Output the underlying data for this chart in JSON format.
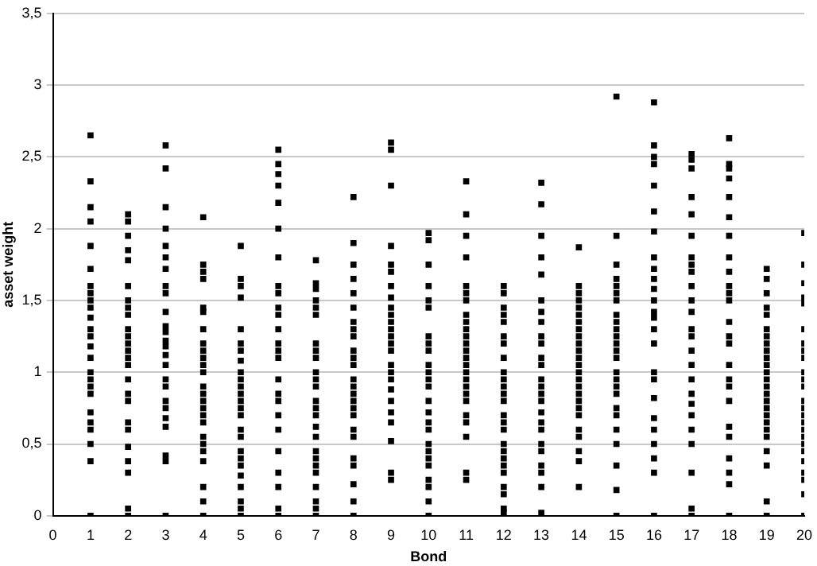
{
  "chart_data": {
    "type": "scatter",
    "xlabel": "Bond",
    "ylabel": "asset weight",
    "xlim": [
      0,
      20
    ],
    "xticks": [
      0,
      1,
      2,
      3,
      4,
      5,
      6,
      7,
      8,
      9,
      10,
      11,
      12,
      13,
      14,
      15,
      16,
      17,
      18,
      19,
      20
    ],
    "ylim": [
      0,
      3.5
    ],
    "yticks": [
      0,
      {
        "value": 0.5,
        "label": "0,5"
      },
      1,
      {
        "value": 1.5,
        "label": "1,5"
      },
      2,
      {
        "value": 2.5,
        "label": "2,5"
      },
      3,
      {
        "value": 3.5,
        "label": "3,5"
      }
    ],
    "grid": "y",
    "legend": false,
    "color": "#000000",
    "marker": "square",
    "x": [
      1,
      1,
      1,
      1,
      1,
      1,
      1,
      1,
      1,
      1,
      1,
      1,
      1,
      1,
      1,
      1,
      1,
      1,
      1,
      1,
      1,
      1,
      1,
      1,
      1,
      2,
      2,
      2,
      2,
      2,
      2,
      2,
      2,
      2,
      2,
      2,
      2,
      2,
      2,
      2,
      2,
      2,
      2,
      2,
      2,
      2,
      2,
      2,
      2,
      2,
      3,
      3,
      3,
      3,
      3,
      3,
      3,
      3,
      3,
      3,
      3,
      3,
      3,
      3,
      3,
      3,
      3,
      3,
      3,
      3,
      3,
      3,
      3,
      3,
      3,
      4,
      4,
      4,
      4,
      4,
      4,
      4,
      4,
      4,
      4,
      4,
      4,
      4,
      4,
      4,
      4,
      4,
      4,
      4,
      4,
      4,
      4,
      4,
      4,
      4,
      5,
      5,
      5,
      5,
      5,
      5,
      5,
      5,
      5,
      5,
      5,
      5,
      5,
      5,
      5,
      5,
      5,
      5,
      5,
      5,
      5,
      5,
      5,
      5,
      5,
      6,
      6,
      6,
      6,
      6,
      6,
      6,
      6,
      6,
      6,
      6,
      6,
      6,
      6,
      6,
      6,
      6,
      6,
      6,
      6,
      6,
      6,
      6,
      6,
      6,
      7,
      7,
      7,
      7,
      7,
      7,
      7,
      7,
      7,
      7,
      7,
      7,
      7,
      7,
      7,
      7,
      7,
      7,
      7,
      7,
      7,
      7,
      7,
      7,
      7,
      8,
      8,
      8,
      8,
      8,
      8,
      8,
      8,
      8,
      8,
      8,
      8,
      8,
      8,
      8,
      8,
      8,
      8,
      8,
      8,
      8,
      8,
      8,
      8,
      8,
      9,
      9,
      9,
      9,
      9,
      9,
      9,
      9,
      9,
      9,
      9,
      9,
      9,
      9,
      9,
      9,
      9,
      9,
      9,
      9,
      9,
      9,
      9,
      9,
      9,
      10,
      10,
      10,
      10,
      10,
      10,
      10,
      10,
      10,
      10,
      10,
      10,
      10,
      10,
      10,
      10,
      10,
      10,
      10,
      10,
      10,
      10,
      10,
      10,
      10,
      11,
      11,
      11,
      11,
      11,
      11,
      11,
      11,
      11,
      11,
      11,
      11,
      11,
      11,
      11,
      11,
      11,
      11,
      11,
      11,
      11,
      11,
      11,
      11,
      11,
      12,
      12,
      12,
      12,
      12,
      12,
      12,
      12,
      12,
      12,
      12,
      12,
      12,
      12,
      12,
      12,
      12,
      12,
      12,
      12,
      12,
      12,
      12,
      12,
      12,
      13,
      13,
      13,
      13,
      13,
      13,
      13,
      13,
      13,
      13,
      13,
      13,
      13,
      13,
      13,
      13,
      13,
      13,
      13,
      13,
      13,
      13,
      13,
      13,
      13,
      14,
      14,
      14,
      14,
      14,
      14,
      14,
      14,
      14,
      14,
      14,
      14,
      14,
      14,
      14,
      14,
      14,
      14,
      14,
      14,
      14,
      14,
      14,
      14,
      14,
      15,
      15,
      15,
      15,
      15,
      15,
      15,
      15,
      15,
      15,
      15,
      15,
      15,
      15,
      15,
      15,
      15,
      15,
      15,
      15,
      15,
      15,
      15,
      15,
      15,
      16,
      16,
      16,
      16,
      16,
      16,
      16,
      16,
      16,
      16,
      16,
      16,
      16,
      16,
      16,
      16,
      16,
      16,
      16,
      16,
      16,
      16,
      16,
      16,
      16,
      17,
      17,
      17,
      17,
      17,
      17,
      17,
      17,
      17,
      17,
      17,
      17,
      17,
      17,
      17,
      17,
      17,
      17,
      17,
      17,
      17,
      17,
      17,
      17,
      17,
      18,
      18,
      18,
      18,
      18,
      18,
      18,
      18,
      18,
      18,
      18,
      18,
      18,
      18,
      18,
      18,
      18,
      18,
      18,
      18,
      18,
      18,
      18,
      18,
      18,
      19,
      19,
      19,
      19,
      19,
      19,
      19,
      19,
      19,
      19,
      19,
      19,
      19,
      19,
      19,
      19,
      19,
      19,
      19,
      19,
      19,
      19,
      19,
      19,
      19,
      20,
      20,
      20,
      20,
      20,
      20,
      20,
      20,
      20,
      20,
      20,
      20,
      20,
      20,
      20,
      20,
      20,
      20,
      20,
      20,
      20,
      20,
      20,
      20,
      20
    ],
    "values": [
      2.65,
      2.33,
      2.15,
      2.05,
      1.88,
      1.72,
      1.6,
      1.55,
      1.5,
      1.45,
      1.38,
      1.3,
      1.25,
      1.18,
      1.1,
      1.0,
      0.95,
      0.9,
      0.85,
      0.72,
      0.65,
      0.6,
      0.5,
      0.38,
      0,
      2.1,
      2.05,
      1.95,
      1.85,
      1.78,
      1.6,
      1.5,
      1.45,
      1.4,
      1.3,
      1.25,
      1.2,
      1.15,
      1.1,
      1.05,
      0.95,
      0.85,
      0.8,
      0.65,
      0.6,
      0.48,
      0.38,
      0.3,
      0.05,
      0,
      2.58,
      2.42,
      2.15,
      2.0,
      1.88,
      1.8,
      1.72,
      1.6,
      1.55,
      1.42,
      1.32,
      1.28,
      1.22,
      1.18,
      1.12,
      1.05,
      0.95,
      0.9,
      0.8,
      0.75,
      0.68,
      0.62,
      0.42,
      0.38,
      0,
      2.08,
      1.75,
      1.7,
      1.65,
      1.45,
      1.42,
      1.3,
      1.2,
      1.15,
      1.1,
      1.05,
      1.0,
      0.9,
      0.85,
      0.8,
      0.75,
      0.7,
      0.65,
      0.55,
      0.5,
      0.45,
      0.38,
      0.2,
      0.1,
      0,
      1.88,
      1.65,
      1.6,
      1.52,
      1.3,
      1.2,
      1.15,
      1.08,
      1.0,
      0.95,
      0.9,
      0.85,
      0.8,
      0.75,
      0.7,
      0.6,
      0.55,
      0.45,
      0.4,
      0.35,
      0.28,
      0.2,
      0.1,
      0.05,
      0,
      2.55,
      2.45,
      2.38,
      2.3,
      2.18,
      2.0,
      1.8,
      1.6,
      1.55,
      1.45,
      1.4,
      1.3,
      1.2,
      1.15,
      1.1,
      0.95,
      0.85,
      0.8,
      0.7,
      0.6,
      0.45,
      0.3,
      0.2,
      0.05,
      0,
      1.78,
      1.62,
      1.58,
      1.5,
      1.45,
      1.4,
      1.2,
      1.15,
      1.1,
      1.0,
      0.95,
      0.9,
      0.8,
      0.75,
      0.7,
      0.62,
      0.55,
      0.45,
      0.4,
      0.35,
      0.3,
      0.2,
      0.1,
      0.05,
      0,
      2.22,
      1.9,
      1.75,
      1.65,
      1.55,
      1.45,
      1.35,
      1.3,
      1.25,
      1.15,
      1.1,
      1.05,
      0.95,
      0.9,
      0.85,
      0.8,
      0.75,
      0.7,
      0.6,
      0.55,
      0.4,
      0.35,
      0.22,
      0.1,
      0,
      2.6,
      2.55,
      2.3,
      1.88,
      1.75,
      1.7,
      1.6,
      1.52,
      1.45,
      1.4,
      1.35,
      1.3,
      1.25,
      1.2,
      1.15,
      1.05,
      1.0,
      0.95,
      0.88,
      0.8,
      0.72,
      0.65,
      0.52,
      0.3,
      0.25,
      1.97,
      1.92,
      1.75,
      1.6,
      1.5,
      1.45,
      1.25,
      1.2,
      1.15,
      1.05,
      1.0,
      0.95,
      0.9,
      0.8,
      0.72,
      0.65,
      0.6,
      0.5,
      0.45,
      0.4,
      0.35,
      0.25,
      0.2,
      0.1,
      0,
      2.33,
      2.1,
      1.95,
      1.8,
      1.6,
      1.55,
      1.5,
      1.4,
      1.35,
      1.3,
      1.25,
      1.2,
      1.15,
      1.1,
      1.05,
      1.0,
      0.95,
      0.9,
      0.85,
      0.8,
      0.7,
      0.65,
      0.55,
      0.3,
      0.25,
      1.6,
      1.55,
      1.45,
      1.4,
      1.35,
      1.25,
      1.2,
      1.1,
      1.0,
      0.95,
      0.9,
      0.85,
      0.8,
      0.7,
      0.65,
      0.6,
      0.5,
      0.45,
      0.4,
      0.35,
      0.3,
      0.2,
      0.15,
      0.05,
      0.02,
      2.32,
      2.17,
      1.95,
      1.8,
      1.68,
      1.5,
      1.42,
      1.35,
      1.25,
      1.2,
      1.1,
      1.05,
      0.95,
      0.9,
      0.85,
      0.8,
      0.72,
      0.65,
      0.6,
      0.5,
      0.45,
      0.35,
      0.3,
      0.2,
      0.02,
      1.87,
      1.6,
      1.55,
      1.5,
      1.45,
      1.4,
      1.35,
      1.3,
      1.25,
      1.2,
      1.15,
      1.1,
      1.05,
      1.0,
      0.95,
      0.9,
      0.85,
      0.8,
      0.75,
      0.7,
      0.6,
      0.55,
      0.45,
      0.38,
      0.2,
      2.92,
      1.95,
      1.75,
      1.65,
      1.6,
      1.55,
      1.5,
      1.4,
      1.35,
      1.3,
      1.25,
      1.2,
      1.15,
      1.1,
      1.0,
      0.95,
      0.9,
      0.85,
      0.75,
      0.7,
      0.6,
      0.5,
      0.35,
      0.18,
      0,
      2.88,
      2.58,
      2.5,
      2.45,
      2.3,
      2.12,
      1.98,
      1.8,
      1.72,
      1.65,
      1.58,
      1.5,
      1.42,
      1.38,
      1.3,
      1.2,
      1.0,
      0.95,
      0.82,
      0.68,
      0.6,
      0.5,
      0.4,
      0.3,
      0,
      2.52,
      2.48,
      2.42,
      2.22,
      2.1,
      1.95,
      1.8,
      1.75,
      1.7,
      1.6,
      1.5,
      1.42,
      1.3,
      1.25,
      1.15,
      1.05,
      0.95,
      0.85,
      0.78,
      0.7,
      0.6,
      0.5,
      0.3,
      0.05,
      0,
      2.63,
      2.45,
      2.42,
      2.35,
      2.22,
      2.08,
      1.95,
      1.8,
      1.7,
      1.6,
      1.55,
      1.5,
      1.35,
      1.25,
      1.2,
      1.05,
      0.95,
      0.9,
      0.8,
      0.62,
      0.55,
      0.4,
      0.3,
      0.22,
      0,
      1.72,
      1.65,
      1.55,
      1.45,
      1.4,
      1.3,
      1.25,
      1.2,
      1.15,
      1.1,
      1.05,
      1.0,
      0.95,
      0.9,
      0.85,
      0.8,
      0.75,
      0.7,
      0.65,
      0.6,
      0.55,
      0.45,
      0.35,
      0.1,
      0,
      1.97,
      1.75,
      1.62,
      1.52,
      1.48,
      1.3,
      1.2,
      1.15,
      1.1,
      1.0,
      0.95,
      0.9,
      0.8,
      0.75,
      0.7,
      0.65,
      0.6,
      0.55,
      0.5,
      0.45,
      0.38,
      0.3,
      0.25,
      0.15,
      0
    ]
  }
}
